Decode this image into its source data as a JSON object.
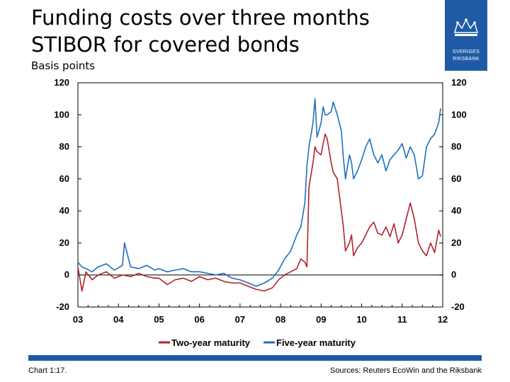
{
  "header": {
    "title_line1": "Funding costs over three months",
    "title_line2": "STIBOR for covered bonds",
    "subtitle": "Basis points",
    "logo_text_1": "SVERIGES",
    "logo_text_2": "RIKSBANK",
    "logo_icon": "crown-crest-icon"
  },
  "footer": {
    "chart_id": "Chart 1:17.",
    "source": "Sources: Reuters EcoWin and the Riksbank"
  },
  "colors": {
    "brand": "#1f5aa6",
    "two_year": "#b0222b",
    "five_year": "#1f6fba"
  },
  "chart_data": {
    "type": "line",
    "title": "Funding costs over three months STIBOR for covered bonds",
    "ylabel": "Basis points",
    "xlabel": "",
    "ylim": [
      -20,
      120
    ],
    "yticks": [
      -20,
      0,
      20,
      40,
      60,
      80,
      100,
      120
    ],
    "xlim": [
      2003,
      2012
    ],
    "xticks": [
      "03",
      "04",
      "05",
      "06",
      "07",
      "08",
      "09",
      "10",
      "11",
      "12"
    ],
    "legend_position": "bottom",
    "grid": false,
    "series": [
      {
        "name": "Two-year maturity",
        "x": [
          2003.0,
          2003.1,
          2003.2,
          2003.35,
          2003.5,
          2003.7,
          2003.9,
          2004.1,
          2004.3,
          2004.5,
          2004.7,
          2004.9,
          2005.0,
          2005.2,
          2005.4,
          2005.6,
          2005.8,
          2006.0,
          2006.2,
          2006.4,
          2006.6,
          2006.8,
          2007.0,
          2007.2,
          2007.4,
          2007.6,
          2007.8,
          2007.95,
          2008.1,
          2008.25,
          2008.4,
          2008.5,
          2008.6,
          2008.65,
          2008.7,
          2008.8,
          2008.85,
          2008.9,
          2009.0,
          2009.05,
          2009.1,
          2009.15,
          2009.25,
          2009.3,
          2009.4,
          2009.5,
          2009.55,
          2009.6,
          2009.7,
          2009.75,
          2009.8,
          2009.9,
          2010.0,
          2010.1,
          2010.2,
          2010.3,
          2010.4,
          2010.5,
          2010.6,
          2010.7,
          2010.8,
          2010.9,
          2011.0,
          2011.1,
          2011.2,
          2011.3,
          2011.4,
          2011.5,
          2011.6,
          2011.7,
          2011.8,
          2011.9,
          2011.95
        ],
        "y": [
          5,
          -10,
          2,
          -3,
          0,
          2,
          -2,
          0,
          -1,
          1,
          -1,
          -2,
          -2,
          -6,
          -3,
          -2,
          -4,
          -1,
          -3,
          -2,
          -4,
          -5,
          -5,
          -7,
          -9,
          -10,
          -8,
          -3,
          0,
          2,
          4,
          10,
          8,
          5,
          55,
          70,
          80,
          77,
          75,
          82,
          88,
          85,
          70,
          64,
          60,
          40,
          30,
          15,
          20,
          25,
          12,
          17,
          20,
          25,
          30,
          33,
          26,
          25,
          30,
          24,
          32,
          20,
          25,
          35,
          45,
          35,
          20,
          15,
          12,
          20,
          14,
          28,
          24
        ]
      },
      {
        "name": "Five-year maturity",
        "x": [
          2003.0,
          2003.1,
          2003.2,
          2003.35,
          2003.5,
          2003.7,
          2003.9,
          2004.1,
          2004.15,
          2004.3,
          2004.5,
          2004.7,
          2004.9,
          2005.0,
          2005.2,
          2005.4,
          2005.6,
          2005.8,
          2006.0,
          2006.2,
          2006.4,
          2006.6,
          2006.8,
          2007.0,
          2007.2,
          2007.4,
          2007.6,
          2007.8,
          2007.95,
          2008.1,
          2008.25,
          2008.4,
          2008.5,
          2008.6,
          2008.65,
          2008.7,
          2008.8,
          2008.85,
          2008.9,
          2009.0,
          2009.05,
          2009.1,
          2009.15,
          2009.25,
          2009.3,
          2009.4,
          2009.5,
          2009.55,
          2009.6,
          2009.7,
          2009.75,
          2009.8,
          2009.9,
          2010.0,
          2010.1,
          2010.2,
          2010.3,
          2010.4,
          2010.5,
          2010.6,
          2010.7,
          2010.8,
          2010.9,
          2011.0,
          2011.1,
          2011.2,
          2011.3,
          2011.4,
          2011.5,
          2011.6,
          2011.7,
          2011.8,
          2011.9,
          2011.95
        ],
        "y": [
          8,
          5,
          4,
          2,
          5,
          7,
          3,
          6,
          20,
          5,
          4,
          6,
          3,
          4,
          2,
          3,
          4,
          2,
          2,
          1,
          0,
          1,
          -2,
          -3,
          -5,
          -7,
          -5,
          -2,
          3,
          10,
          15,
          25,
          30,
          45,
          68,
          80,
          95,
          110,
          86,
          95,
          105,
          100,
          100,
          102,
          108,
          100,
          90,
          73,
          60,
          75,
          70,
          60,
          65,
          72,
          80,
          85,
          75,
          70,
          75,
          65,
          72,
          75,
          78,
          82,
          73,
          80,
          75,
          60,
          62,
          80,
          85,
          88,
          95,
          104
        ]
      }
    ]
  }
}
